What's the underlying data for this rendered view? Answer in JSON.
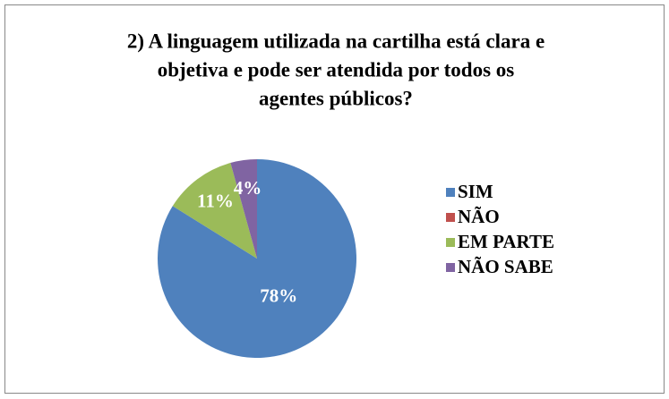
{
  "chart_data": {
    "type": "pie",
    "title": [
      "2) A linguagem utilizada na cartilha está clara e",
      "objetiva e pode ser atendida por todos os",
      "agentes públicos?"
    ],
    "categories": [
      "SIM",
      "NÃO",
      "EM PARTE",
      "NÃO SABE"
    ],
    "values": [
      78,
      0,
      11,
      4
    ],
    "value_labels": [
      "78%",
      null,
      "11%",
      "4%"
    ],
    "colors": [
      "#4f81bd",
      "#c0504d",
      "#9bbb59",
      "#8064a2"
    ],
    "legend": "right"
  }
}
